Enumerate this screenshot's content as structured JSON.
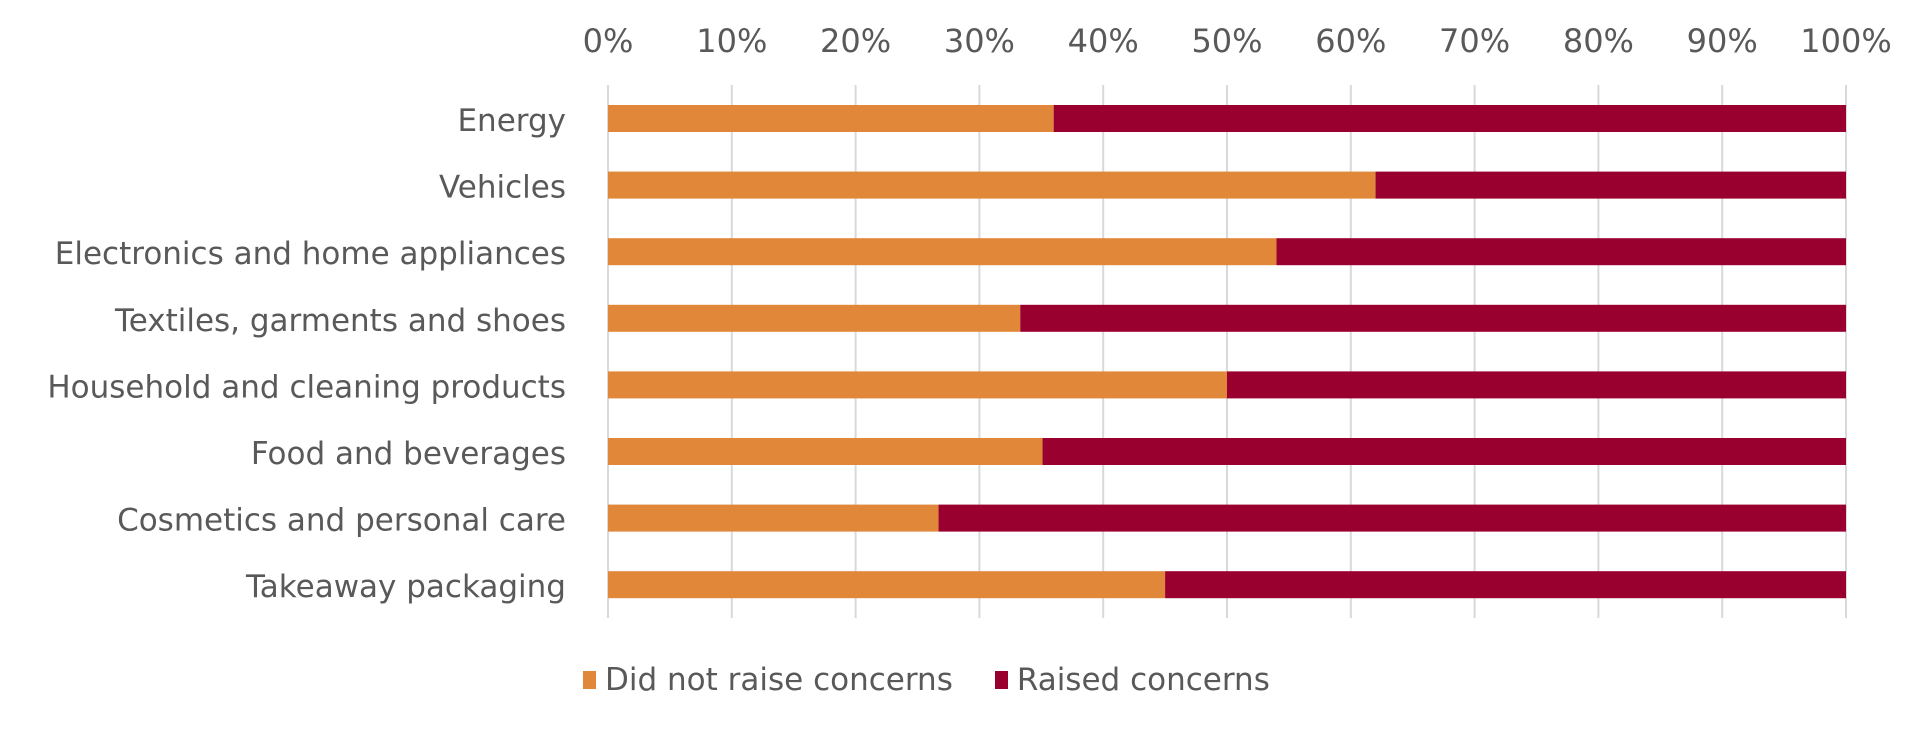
{
  "chart_data": {
    "type": "bar",
    "orientation": "horizontal",
    "stacked": "percent",
    "title": "",
    "xlabel": "",
    "ylabel": "",
    "xlim": [
      0,
      100
    ],
    "x_ticks": [
      "0%",
      "10%",
      "20%",
      "30%",
      "40%",
      "50%",
      "60%",
      "70%",
      "80%",
      "90%",
      "100%"
    ],
    "x_axis_position": "top",
    "grid": true,
    "legend_position": "bottom",
    "categories": [
      "Energy",
      "Vehicles",
      "Electronics and home appliances",
      "Textiles, garments and shoes",
      "Household and cleaning products",
      "Food and beverages",
      "Cosmetics and personal care",
      "Takeaway packaging"
    ],
    "series": [
      {
        "name": "Did not raise concerns",
        "color": "#E0873A",
        "values": [
          36,
          62,
          54,
          33.3,
          50,
          35.1,
          26.7,
          45
        ]
      },
      {
        "name": "Raised concerns",
        "color": "#990030",
        "values": [
          64,
          38,
          46,
          66.7,
          50,
          64.9,
          73.3,
          55
        ]
      }
    ]
  }
}
